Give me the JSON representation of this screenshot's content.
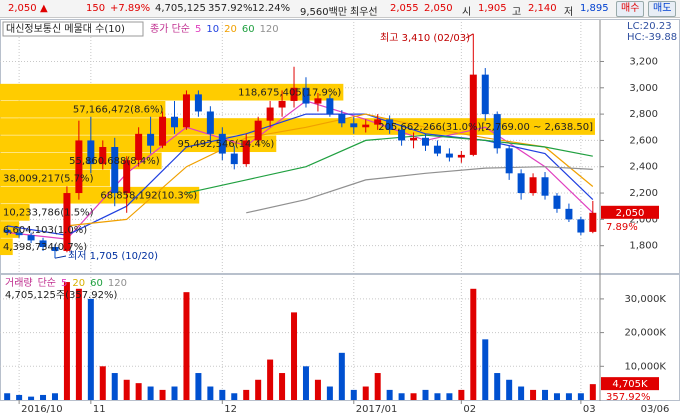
{
  "header": {
    "price": "2,050",
    "arrow": "▲",
    "change": "150",
    "change_pct": "+7.89%",
    "volume": "4,705,125",
    "vol_ratio": "357.92%",
    "turnover": "12.24%",
    "amount": "9,560백만",
    "best_label": "최우선",
    "ask": "2,055",
    "bid": "2,050",
    "open_label": "시",
    "open": "1,905",
    "high_label": "고",
    "high": "2,140",
    "low_label": "저",
    "low": "1,895",
    "buy": "매수",
    "sell": "매도"
  },
  "chart_data": [
    {
      "type": "candlestick",
      "title": "대신정보통신 메물대 수(10)",
      "ma_title": "종가 단순",
      "lc": "LC:20.23",
      "hc": "HC:-39.88",
      "up_color": "#e00000",
      "down_color": "#0050d0",
      "open": [
        1920,
        1900,
        1880,
        1840,
        1790,
        1760,
        2200,
        2600,
        2420,
        2550,
        2200,
        2450,
        2650,
        2560,
        2780,
        2700,
        2950,
        2820,
        2650,
        2500,
        2420,
        2600,
        2750,
        2850,
        2900,
        3000,
        2880,
        2920,
        2800,
        2730,
        2700,
        2720,
        2760,
        2680,
        2600,
        2620,
        2560,
        2500,
        2470,
        2490,
        3100,
        2800,
        2540,
        2350,
        2200,
        2320,
        2180,
        2080,
        2000,
        1905
      ],
      "high": [
        1950,
        1930,
        1900,
        1860,
        1810,
        2250,
        2750,
        2780,
        2600,
        2620,
        2480,
        2700,
        2780,
        2820,
        2900,
        2980,
        2980,
        2860,
        2700,
        2560,
        2650,
        2780,
        2900,
        2980,
        3160,
        3080,
        2960,
        2950,
        2830,
        2780,
        2760,
        2800,
        2790,
        2720,
        2660,
        2650,
        2600,
        2540,
        2520,
        3410,
        3150,
        2820,
        2560,
        2380,
        2350,
        2360,
        2200,
        2120,
        2020,
        2140
      ],
      "low": [
        1880,
        1860,
        1820,
        1760,
        1705,
        1750,
        2150,
        2350,
        2380,
        2100,
        2050,
        2400,
        2500,
        2540,
        2650,
        2680,
        2780,
        2600,
        2450,
        2380,
        2400,
        2560,
        2700,
        2780,
        2850,
        2850,
        2820,
        2780,
        2700,
        2650,
        2660,
        2680,
        2650,
        2560,
        2540,
        2520,
        2480,
        2440,
        2430,
        2480,
        2750,
        2500,
        2300,
        2150,
        2180,
        2150,
        2050,
        1980,
        1880,
        1895
      ],
      "close": [
        1900,
        1880,
        1840,
        1790,
        1760,
        2200,
        2600,
        2420,
        2550,
        2200,
        2450,
        2650,
        2560,
        2780,
        2700,
        2950,
        2820,
        2650,
        2500,
        2420,
        2600,
        2750,
        2850,
        2900,
        3000,
        2880,
        2920,
        2800,
        2730,
        2700,
        2720,
        2760,
        2680,
        2600,
        2620,
        2560,
        2500,
        2470,
        2490,
        3100,
        2800,
        2540,
        2350,
        2200,
        2320,
        2180,
        2080,
        2000,
        1900,
        2050
      ],
      "ma_index": [
        0,
        5,
        10,
        15,
        20,
        25,
        30,
        35,
        40,
        45,
        49
      ],
      "ma": [
        {
          "name": "5",
          "color": "#e040c0",
          "values": [
            1900,
            1850,
            2350,
            2700,
            2560,
            2900,
            2760,
            2600,
            2700,
            2400,
            2050
          ]
        },
        {
          "name": "10",
          "color": "#2040e0",
          "values": [
            1950,
            1880,
            2100,
            2550,
            2650,
            2800,
            2800,
            2650,
            2600,
            2500,
            2150
          ]
        },
        {
          "name": "20",
          "color": "#f0a000",
          "values": [
            null,
            1950,
            2000,
            2400,
            2620,
            2700,
            2800,
            2700,
            2620,
            2550,
            2250
          ]
        },
        {
          "name": "60",
          "color": "#20a040",
          "values": [
            null,
            null,
            null,
            2200,
            2300,
            2400,
            2600,
            2640,
            2600,
            2550,
            2480
          ]
        },
        {
          "name": "120",
          "color": "#909090",
          "values": [
            null,
            null,
            null,
            null,
            2050,
            2150,
            2300,
            2350,
            2390,
            2400,
            2380
          ]
        }
      ],
      "profile": {
        "color": "#ffcc00",
        "bins": [
          1725,
          1855.5,
          1986,
          2116.5,
          2247,
          2377.5,
          2508,
          2638.5,
          2769,
          2899.5,
          3030
        ],
        "volumes": [
          4398734,
          6604103,
          10233786,
          68858192,
          38009217,
          55860688,
          95492546,
          205662266,
          57166472,
          118675405
        ],
        "value_labels": [
          "4,398,734(0.7%)",
          "6,604,103(1.0%)",
          "10,233,786(1.5%)",
          "68,858,192(10.3%)",
          "38,009,217(5.7%)",
          "55,860,688(8.4%)",
          "95,492,546(14.4%)",
          "205,662,266(31.0%)[2,769.00 ~ 2,638.50]",
          "57,166,472(8.6%)",
          "118,675,405(17.9%)"
        ]
      },
      "annotations": [
        "최고 3,410 (02/03)",
        "최저 1,705 (10/20)"
      ],
      "last_price": {
        "value": 2050,
        "label": "2,050"
      },
      "last_change": "7.89%",
      "xlim": [
        -0.6,
        49.6
      ],
      "ylim": [
        1600,
        3500
      ],
      "yticks": [
        {
          "value": 1800,
          "label": "1,800"
        },
        {
          "value": 2000,
          "label": "2,000"
        },
        {
          "value": 2200,
          "label": "2,200"
        },
        {
          "value": 2400,
          "label": "2,400"
        },
        {
          "value": 2600,
          "label": "2,600"
        },
        {
          "value": 2800,
          "label": "2,800"
        },
        {
          "value": 3000,
          "label": "3,000"
        },
        {
          "value": 3200,
          "label": "3,200"
        }
      ],
      "grid": true
    },
    {
      "type": "volume",
      "title": "거래량",
      "ma_title": "단순",
      "summary": "4,705,125주(357.92%)",
      "ma_names": [
        {
          "name": "5",
          "color": "#e040c0"
        },
        {
          "name": "20",
          "color": "#d8b000"
        },
        {
          "name": "60",
          "color": "#20a040"
        },
        {
          "name": "120",
          "color": "#909090"
        }
      ],
      "values": [
        2000000,
        1500000,
        1000000,
        1500000,
        2000000,
        35000000,
        33000000,
        30000000,
        10000000,
        8000000,
        6000000,
        5000000,
        4000000,
        3000000,
        4000000,
        32000000,
        8000000,
        4000000,
        3000000,
        2000000,
        3000000,
        6000000,
        12000000,
        8000000,
        26000000,
        10000000,
        6000000,
        4000000,
        14000000,
        3000000,
        4000000,
        8000000,
        3000000,
        2000000,
        2000000,
        3000000,
        2000000,
        2000000,
        3000000,
        33000000,
        18000000,
        8000000,
        6000000,
        4000000,
        3000000,
        3000000,
        2000000,
        2000000,
        2000000,
        4705125
      ],
      "last_volume": {
        "value": 4705125,
        "label": "4,705K"
      },
      "last_ratio": "357.92%",
      "xlim": [
        -0.6,
        49.6
      ],
      "ylim": [
        0,
        36500000
      ],
      "yticks": [
        {
          "value": 10000000,
          "label": "10,000K"
        },
        {
          "value": 20000000,
          "label": "20,000K"
        },
        {
          "value": 30000000,
          "label": "30,000K"
        }
      ],
      "xticks": [
        {
          "value": 1,
          "label": "2016/10"
        },
        {
          "value": 7,
          "label": "11"
        },
        {
          "value": 18,
          "label": "12"
        },
        {
          "value": 29,
          "label": "2017/01"
        },
        {
          "value": 38,
          "label": "02"
        },
        {
          "value": 48,
          "label": "03"
        }
      ],
      "last_date": "03/06",
      "grid": true
    }
  ]
}
